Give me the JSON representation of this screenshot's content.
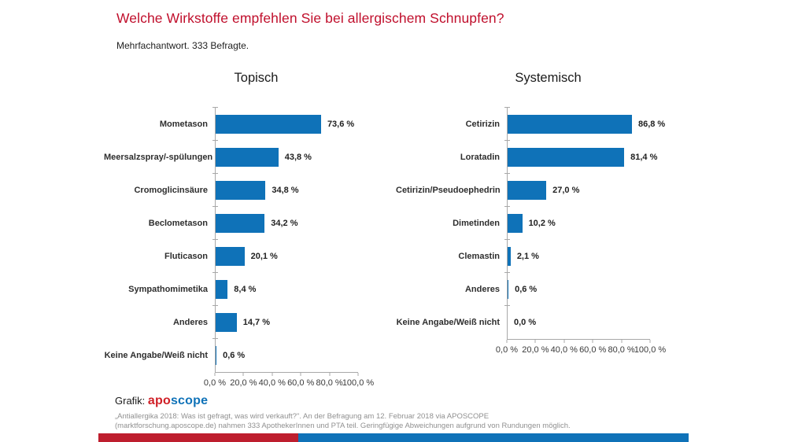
{
  "page": {
    "title": "Welche Wirkstoffe empfehlen Sie bei allergischem Schnupfen?",
    "subtitle": "Mehrfachantwort. 333 Befragte."
  },
  "colors": {
    "title-red": "#c00f2c",
    "logo-red": "#d02027",
    "bottom-red": "#be1e2e",
    "bar": "#0f72b8",
    "axis": "#a8a8a8"
  },
  "chart_data": [
    {
      "type": "bar",
      "orientation": "horizontal",
      "title": "Topisch",
      "categories": [
        "Mometason",
        "Meersalzspray/-spülungen",
        "Cromoglicinsäure",
        "Beclometason",
        "Fluticason",
        "Sympathomimetika",
        "Anderes",
        "Keine Angabe/Weiß nicht"
      ],
      "values": [
        73.6,
        43.8,
        34.8,
        34.2,
        20.1,
        8.4,
        14.7,
        0.6
      ],
      "value_labels": [
        "73,6 %",
        "43,8 %",
        "34,8 %",
        "34,2 %",
        "20,1 %",
        "8,4 %",
        "14,7 %",
        "0,6 %"
      ],
      "xlabel": "",
      "ylabel": "",
      "xlim": [
        0,
        100
      ],
      "x_ticks": [
        "0,0 %",
        "20,0 %",
        "40,0 %",
        "60,0 %",
        "80,0 %",
        "100,0 %"
      ],
      "grid": false,
      "legend": false
    },
    {
      "type": "bar",
      "orientation": "horizontal",
      "title": "Systemisch",
      "categories": [
        "Cetirizin",
        "Loratadin",
        "Cetirizin/Pseudoephedrin",
        "Dimetinden",
        "Clemastin",
        "Anderes",
        "Keine Angabe/Weiß nicht"
      ],
      "values": [
        86.8,
        81.4,
        27.0,
        10.2,
        2.1,
        0.6,
        0.0
      ],
      "value_labels": [
        "86,8 %",
        "81,4 %",
        "27,0 %",
        "10,2 %",
        "2,1 %",
        "0,6 %",
        "0,0 %"
      ],
      "xlabel": "",
      "ylabel": "",
      "xlim": [
        0,
        100
      ],
      "x_ticks": [
        "0,0 %",
        "20,0 %",
        "40,0 %",
        "60,0 %",
        "80,0 %",
        "100,0 %"
      ],
      "grid": false,
      "legend": false
    }
  ],
  "footer": {
    "credit_prefix": "Grafik: ",
    "logo_part1": "apo",
    "logo_part2": "scope",
    "note_line1": "„Antiallergika 2018: Was ist gefragt, was wird verkauft?\". An der Befragung am 12. Februar 2018 via APOSCOPE",
    "note_line2": "(marktforschung.aposcope.de) nahmen 333 ApothekerInnen und PTA teil. Geringfügige Abweichungen aufgrund von Rundungen möglich."
  }
}
